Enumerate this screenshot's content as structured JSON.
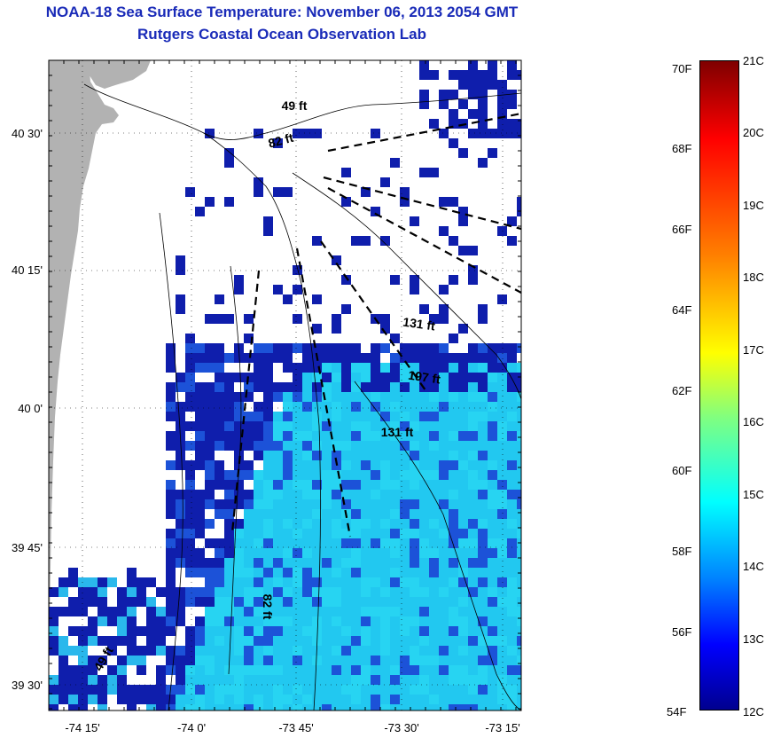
{
  "title": {
    "line1": "NOAA-18 Sea Surface Temperature:  November 06, 2013 2054 GMT",
    "line2": "Rutgers Coastal Ocean Observation Lab"
  },
  "colors": {
    "title": "#1a2bb8",
    "land": "#b2b2b2",
    "ocean_no_data": "#ffffff",
    "cold_blue": "#0f1eac",
    "mid_blue": "#1c52d8",
    "cyan_warm": "#27d4f2"
  },
  "axes": {
    "y_ticks": [
      "40 30'",
      "40 15'",
      "40 0'",
      "39 45'",
      "39 30'"
    ],
    "x_ticks": [
      "-74 15'",
      "-74 0'",
      "-73 45'",
      "-73 30'",
      "-73 15'"
    ]
  },
  "map_labels": [
    {
      "text": "49 ft"
    },
    {
      "text": "82 ft"
    },
    {
      "text": "131 ft"
    },
    {
      "text": "197 ft"
    },
    {
      "text": "131 ft"
    },
    {
      "text": "82 ft"
    },
    {
      "text": "49 ft"
    }
  ],
  "colorbar": {
    "fahrenheit": [
      "70F",
      "68F",
      "66F",
      "64F",
      "62F",
      "60F",
      "58F",
      "56F",
      "54F"
    ],
    "celsius": [
      "21C",
      "20C",
      "19C",
      "18C",
      "17C",
      "16C",
      "15C",
      "14C",
      "13C",
      "12C"
    ],
    "min_c": 12,
    "max_c": 21,
    "colormap": "jet"
  }
}
